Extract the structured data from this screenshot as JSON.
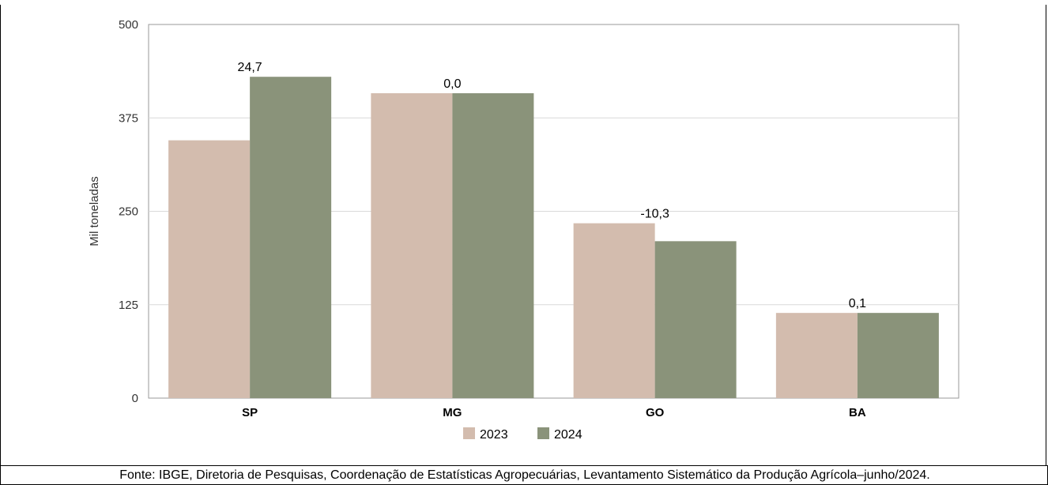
{
  "chart_data": {
    "type": "bar",
    "title": "",
    "xlabel": "",
    "ylabel": "Mil toneladas",
    "ylim": [
      0,
      500
    ],
    "yticks": [
      "0",
      "125",
      "250",
      "375",
      "500"
    ],
    "categories": [
      "SP",
      "MG",
      "GO",
      "BA"
    ],
    "series": [
      {
        "name": "2023",
        "values": [
          345,
          408,
          234,
          114
        ],
        "color": "#d3bcae"
      },
      {
        "name": "2024",
        "values": [
          430,
          408,
          210,
          114
        ],
        "color": "#8a937a"
      }
    ],
    "data_labels": [
      "24,7",
      "0,0",
      "-10,3",
      "0,1"
    ],
    "grid": true,
    "legend_position": "bottom-center"
  },
  "source": "Fonte: IBGE, Diretoria de Pesquisas, Coordenação de Estatísticas Agropecuárias, Levantamento Sistemático da Produção Agrícola–junho/2024."
}
